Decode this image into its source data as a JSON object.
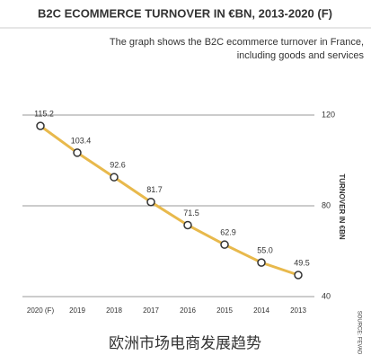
{
  "chart_data": {
    "type": "line",
    "title": "B2C ECOMMERCE TURNOVER IN €BN, 2013-2020 (F)",
    "subtitle": [
      "The graph shows the B2C ecommerce turnover in France,",
      "including goods and services"
    ],
    "categories": [
      "2020 (F)",
      "2019",
      "2018",
      "2017",
      "2016",
      "2015",
      "2014",
      "2013"
    ],
    "values": [
      115.2,
      103.4,
      92.6,
      81.7,
      71.5,
      62.9,
      55.0,
      49.5
    ],
    "value_labels": [
      "115.2",
      "103.4",
      "92.6",
      "81.7",
      "71.5",
      "62.9",
      "55.0",
      "49.5"
    ],
    "color": "#e8b94c",
    "y_label": "TURNOVER IN €BN",
    "ylim": [
      40,
      120
    ],
    "yticks": [
      40,
      80,
      120
    ],
    "grid": true,
    "source": "SOURCE: FEVAD",
    "caption": "欧洲市场电商发展趋势"
  }
}
